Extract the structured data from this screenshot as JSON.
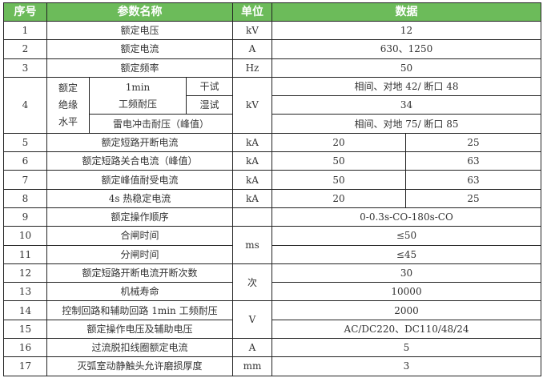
{
  "header": {
    "seq": "序号",
    "name": "参数名称",
    "unit": "单位",
    "data": "数据"
  },
  "colors": {
    "header_bg": "#6cbb5a",
    "header_text": "#ffffff",
    "border": "#222222"
  },
  "rows": [
    {
      "seq": "1",
      "name": "额定电压",
      "unit": "kV",
      "data": "12"
    },
    {
      "seq": "2",
      "name": "额定电流",
      "unit": "A",
      "data": "630、1250"
    },
    {
      "seq": "3",
      "name": "额定频率",
      "unit": "Hz",
      "data": "50"
    },
    {
      "seq": "4",
      "group": "额定绝缘水平",
      "group_lines": [
        "额定",
        "绝缘",
        "水平"
      ],
      "sub1": "1min",
      "sub2": "工频耐压",
      "dry": "干试",
      "wet": "湿试",
      "impulse": "雷电冲击耐压（峰值）",
      "unit": "kV",
      "dry_data": "相间、对地 42/ 断口 48",
      "wet_data": "34",
      "impulse_data": "相间、对地 75/ 断口 85"
    },
    {
      "seq": "5",
      "name": "额定短路开断电流",
      "unit": "kA",
      "data_a": "20",
      "data_b": "25"
    },
    {
      "seq": "6",
      "name": "额定短路关合电流（峰值）",
      "unit": "kA",
      "data_a": "50",
      "data_b": "63"
    },
    {
      "seq": "7",
      "name": "额定峰值耐受电流",
      "unit": "kA",
      "data_a": "50",
      "data_b": "63"
    },
    {
      "seq": "8",
      "name": "4s 热稳定电流",
      "unit": "kA",
      "data_a": "20",
      "data_b": "25"
    },
    {
      "seq": "9",
      "name": "额定操作顺序",
      "unit": "",
      "data": "0-0.3s-CO-180s-CO"
    },
    {
      "seq": "10",
      "name": "合闸时间",
      "unit": "ms",
      "data": "≤50"
    },
    {
      "seq": "11",
      "name": "分闸时间",
      "data": "≤45"
    },
    {
      "seq": "12",
      "name": "额定短路开断电流开断次数",
      "unit": "次",
      "data": "30"
    },
    {
      "seq": "13",
      "name": "机械寿命",
      "data": "10000"
    },
    {
      "seq": "14",
      "name": "控制回路和辅助回路 1min 工频耐压",
      "unit": "V",
      "data": "2000"
    },
    {
      "seq": "15",
      "name": "额定操作电压及辅助电压",
      "data": "AC/DC220、DC110/48/24"
    },
    {
      "seq": "16",
      "name": "过流脱扣线圈额定电流",
      "unit": "A",
      "data": "5"
    },
    {
      "seq": "17",
      "name": "灭弧室动静触头允许磨损厚度",
      "unit": "mm",
      "data": "3"
    }
  ]
}
